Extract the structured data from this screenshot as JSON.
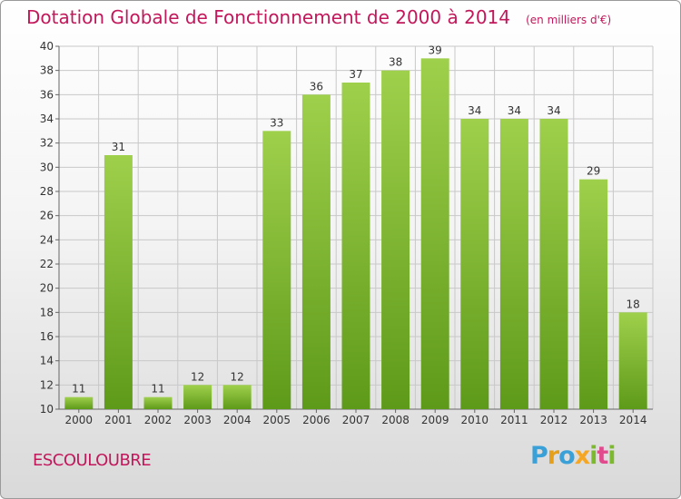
{
  "header": {
    "title": "Dotation Globale de Fonctionnement de 2000 à 2014",
    "unit": "(en milliers d'€)"
  },
  "footer": {
    "commune": "ESCOULOUBRE",
    "logo": "Proxiti"
  },
  "colors": {
    "title": "#c2185b",
    "bar_light": "#9fd04c",
    "bar_dark": "#5e9a19",
    "grid": "#c8c8c8"
  },
  "chart_data": {
    "type": "bar",
    "title": "Dotation Globale de Fonctionnement de 2000 à 2014",
    "subtitle": "(en milliers d'€)",
    "categories": [
      "2000",
      "2001",
      "2002",
      "2003",
      "2004",
      "2005",
      "2006",
      "2007",
      "2008",
      "2009",
      "2010",
      "2011",
      "2012",
      "2013",
      "2014"
    ],
    "values": [
      11,
      31,
      11,
      12,
      12,
      33,
      36,
      37,
      38,
      39,
      34,
      34,
      34,
      29,
      18
    ],
    "ylim": [
      10,
      40
    ],
    "yticks": [
      10,
      12,
      14,
      16,
      18,
      20,
      22,
      24,
      26,
      28,
      30,
      32,
      34,
      36,
      38,
      40
    ],
    "grid": true,
    "xlabel": "",
    "ylabel": ""
  }
}
